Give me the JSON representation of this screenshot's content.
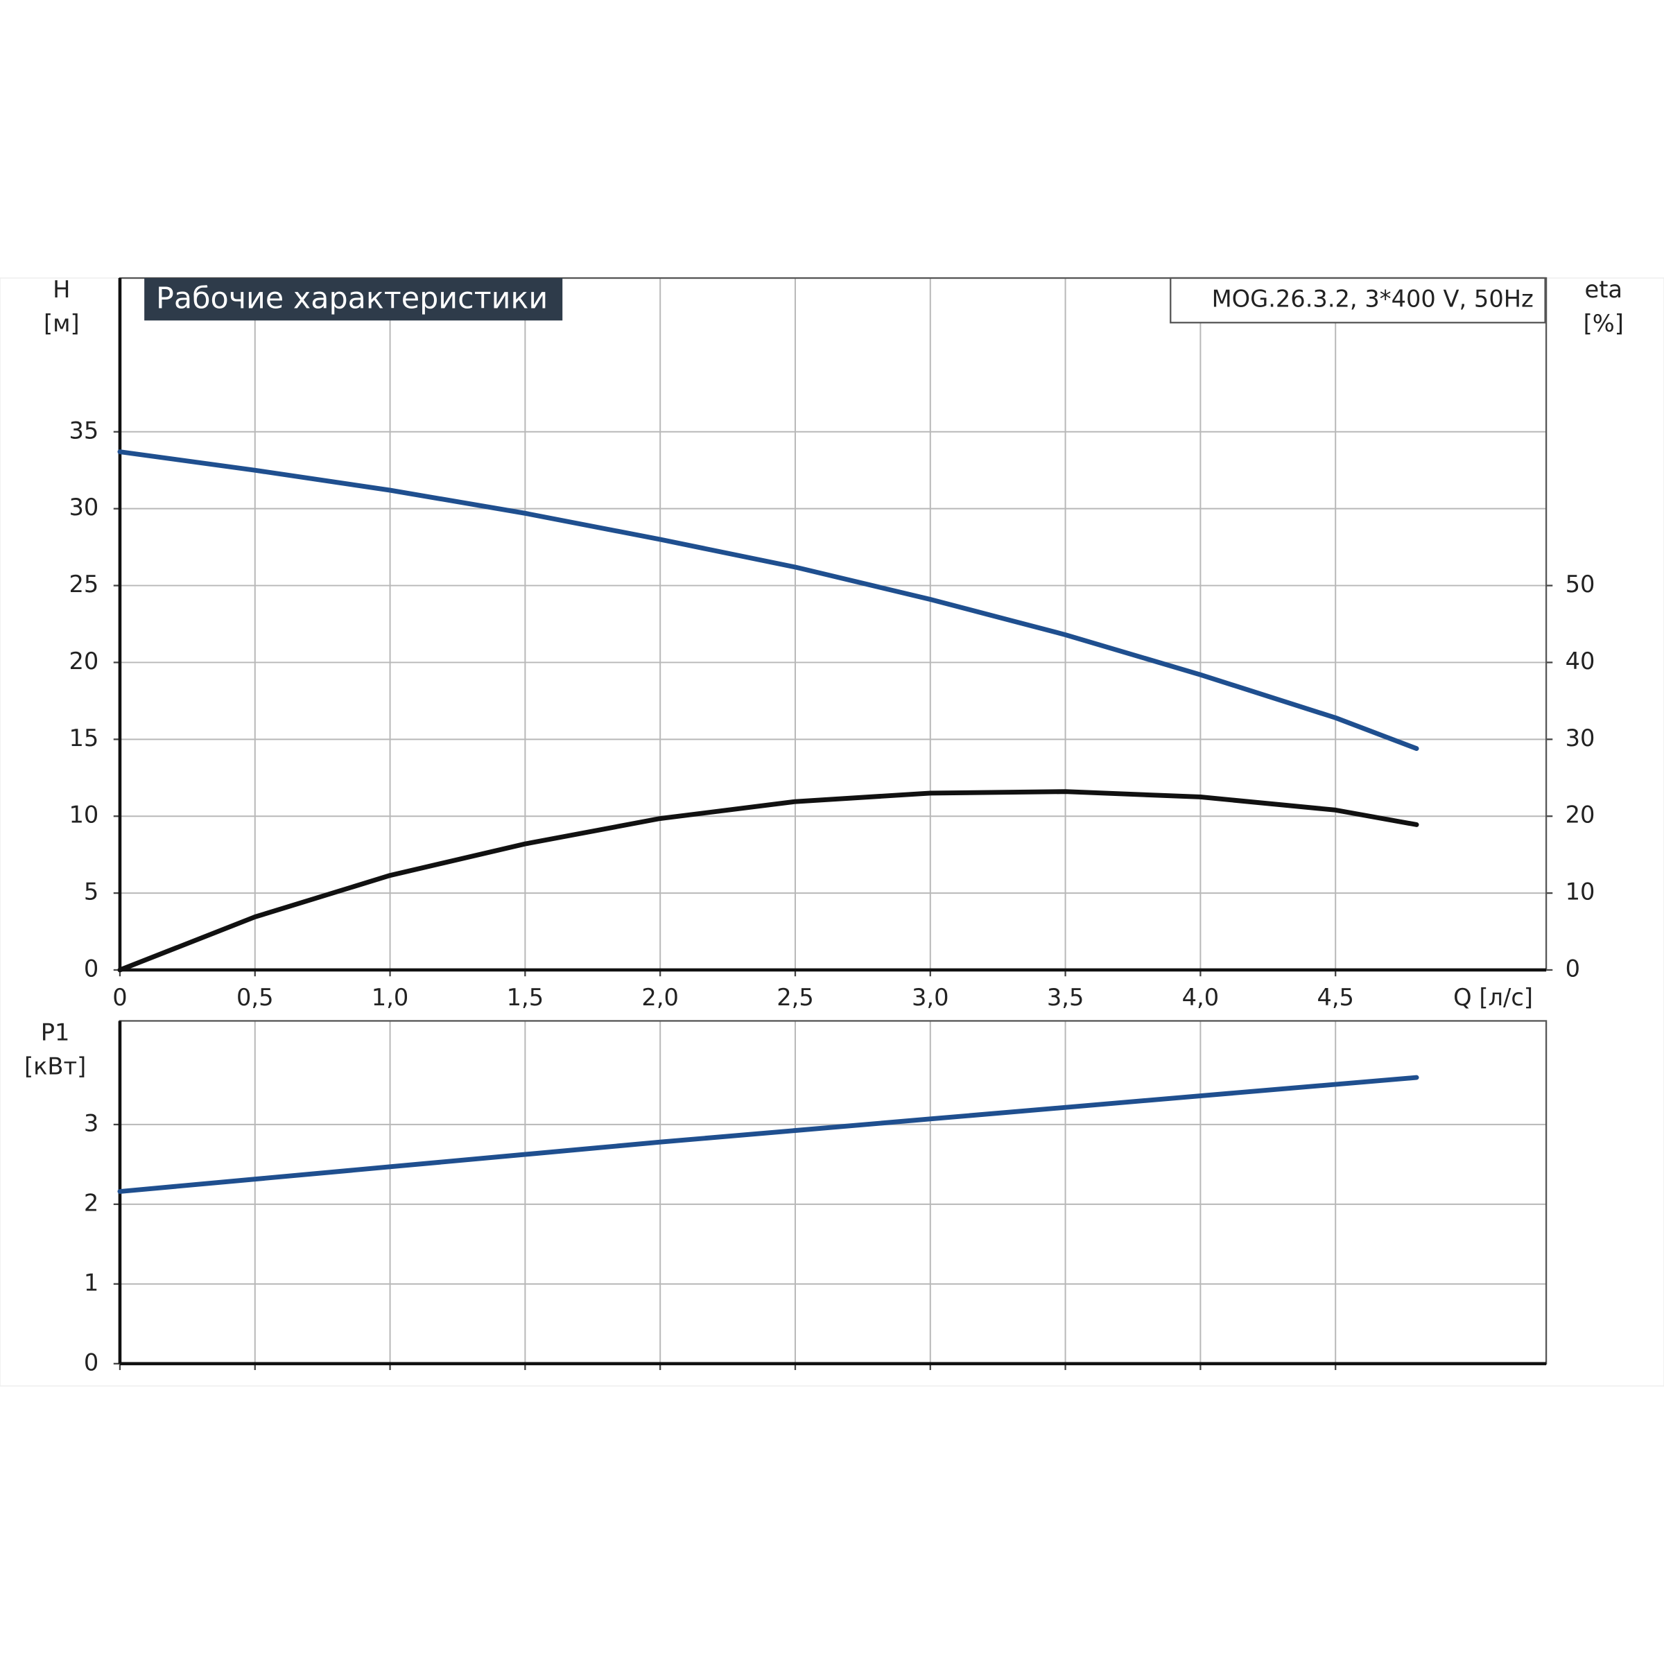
{
  "chart_data": [
    {
      "type": "line",
      "title": "Рабочие характеристики",
      "subtitle": "MOG.26.3.2, 3*400 V, 50Hz",
      "ylabel": "H",
      "yunit": "[м]",
      "y2label": "eta",
      "y2unit": "[%]",
      "xlabel": "Q [л/с]",
      "x": [
        0,
        0.5,
        1.0,
        1.5,
        2.0,
        2.5,
        3.0,
        3.5,
        4.0,
        4.5,
        4.8
      ],
      "xlim": [
        0,
        5.28
      ],
      "xticks": [
        0,
        {
          "value": 0.5,
          "label": "0,5"
        },
        {
          "value": 1.0,
          "label": "1,0"
        },
        {
          "value": 1.5,
          "label": "1,5"
        },
        {
          "value": 2.0,
          "label": "2,0"
        },
        {
          "value": 2.5,
          "label": "2,5"
        },
        {
          "value": 3.0,
          "label": "3,0"
        },
        {
          "value": 3.5,
          "label": "3,5"
        },
        {
          "value": 4.0,
          "label": "4,0"
        },
        {
          "value": 4.5,
          "label": "4,5"
        }
      ],
      "ylim": [
        0,
        45
      ],
      "yticks": [
        0,
        5,
        10,
        15,
        20,
        25,
        30,
        35
      ],
      "y2lim": [
        0,
        90
      ],
      "y2ticks": [
        0,
        10,
        20,
        30,
        40,
        50
      ],
      "grid": true,
      "series": [
        {
          "name": "H",
          "color": "#1f4f8f",
          "values": [
            33.7,
            32.5,
            31.2,
            29.7,
            28.0,
            26.2,
            24.1,
            21.8,
            19.2,
            16.4,
            14.4
          ]
        },
        {
          "name": "eta",
          "color": "#111111",
          "axis": "y2",
          "values": [
            0,
            6.9,
            12.3,
            16.4,
            19.7,
            21.9,
            23.0,
            23.2,
            22.5,
            20.8,
            18.9
          ]
        }
      ]
    },
    {
      "type": "line",
      "ylabel": "P1",
      "yunit": "[кВт]",
      "x": [
        0,
        1,
        2,
        3,
        4,
        4.8
      ],
      "xlim": [
        0,
        5.28
      ],
      "ylim": [
        0,
        4.3
      ],
      "yticks": [
        0,
        1,
        2,
        3
      ],
      "grid": true,
      "series": [
        {
          "name": "P1",
          "color": "#1f4f8f",
          "values": [
            2.16,
            2.47,
            2.78,
            3.07,
            3.36,
            3.59
          ]
        }
      ]
    }
  ]
}
